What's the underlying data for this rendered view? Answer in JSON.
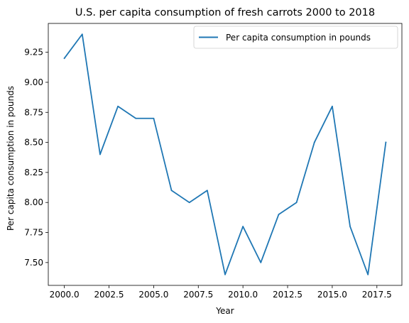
{
  "chart_data": {
    "type": "line",
    "title": "U.S. per capita consumption of fresh carrots 2000 to 2018",
    "xlabel": "Year",
    "ylabel": "Per capita consumption in pounds",
    "xlim": [
      1999.1,
      2018.9
    ],
    "ylim": [
      7.31,
      9.49
    ],
    "x_ticks": [
      2000,
      2002.5,
      2005,
      2007.5,
      2010,
      2012.5,
      2015,
      2017.5
    ],
    "x_tick_labels": [
      "2000.0",
      "2002.5",
      "2005.0",
      "2007.5",
      "2010.0",
      "2012.5",
      "2015.0",
      "2017.5"
    ],
    "y_ticks": [
      7.5,
      7.75,
      8.0,
      8.25,
      8.5,
      8.75,
      9.0,
      9.25
    ],
    "y_tick_labels": [
      "7.50",
      "7.75",
      "8.00",
      "8.25",
      "8.50",
      "8.75",
      "9.00",
      "9.25"
    ],
    "legend_position": "top-right",
    "grid": false,
    "series": [
      {
        "name": "Per capita consumption in pounds",
        "color": "#1f77b4",
        "x": [
          2000,
          2001,
          2002,
          2003,
          2004,
          2005,
          2006,
          2007,
          2008,
          2009,
          2010,
          2011,
          2012,
          2013,
          2014,
          2015,
          2016,
          2017,
          2018
        ],
        "values": [
          9.2,
          9.4,
          8.4,
          8.8,
          8.7,
          8.7,
          8.1,
          8.0,
          8.1,
          7.4,
          7.8,
          7.5,
          7.9,
          8.0,
          8.5,
          8.8,
          7.8,
          7.4,
          8.5
        ]
      }
    ]
  }
}
